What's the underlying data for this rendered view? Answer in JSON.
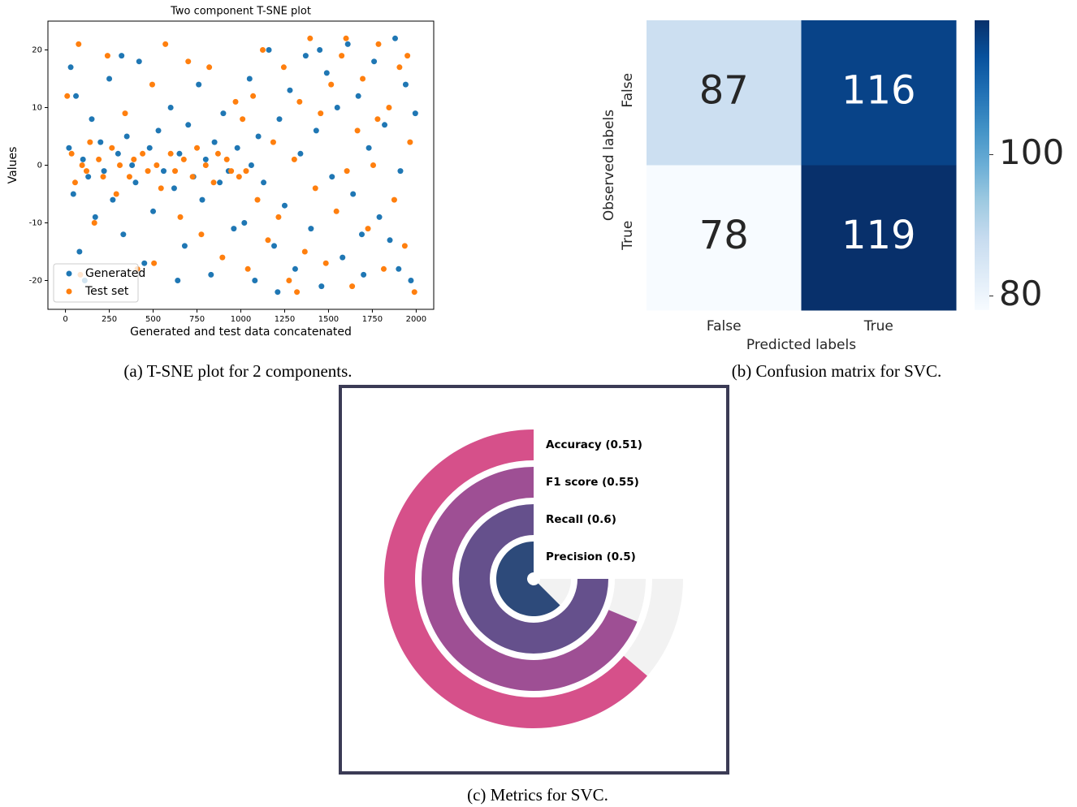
{
  "chart_data": [
    {
      "type": "scatter",
      "title": "Two component T-SNE plot",
      "xlabel": "Generated and test data concatenated",
      "ylabel": "Values",
      "caption": "(a) T-SNE plot for 2 components.",
      "xlim": [
        -100,
        2100
      ],
      "ylim": [
        -25,
        25
      ],
      "xticks": [
        0,
        250,
        500,
        750,
        1000,
        1250,
        1500,
        1750,
        2000
      ],
      "yticks": [
        -20,
        -10,
        0,
        10,
        20
      ],
      "legend": "lower left",
      "series": [
        {
          "name": "Generated",
          "color": "#1f77b4",
          "x": [
            20,
            45,
            60,
            80,
            100,
            130,
            150,
            170,
            200,
            220,
            250,
            270,
            300,
            330,
            350,
            380,
            400,
            420,
            450,
            480,
            500,
            530,
            560,
            600,
            620,
            650,
            680,
            700,
            730,
            760,
            780,
            800,
            830,
            850,
            880,
            900,
            930,
            960,
            980,
            30,
            110,
            320,
            640,
            1020,
            1050,
            1080,
            1100,
            1130,
            1160,
            1190,
            1220,
            1250,
            1280,
            1310,
            1340,
            1370,
            1400,
            1430,
            1460,
            1490,
            1520,
            1550,
            1580,
            1610,
            1640,
            1670,
            1700,
            1730,
            1760,
            1790,
            1820,
            1850,
            1880,
            1910,
            1940,
            1970,
            1995,
            1060,
            1210,
            1450,
            1690,
            1900
          ],
          "values": [
            3,
            -5,
            12,
            -15,
            1,
            -2,
            8,
            -9,
            4,
            -1,
            15,
            -6,
            2,
            -12,
            5,
            0,
            -3,
            18,
            -17,
            3,
            -8,
            6,
            -1,
            10,
            -4,
            2,
            -14,
            7,
            -2,
            14,
            -6,
            1,
            -19,
            4,
            -3,
            9,
            -1,
            -11,
            3,
            17,
            -20,
            19,
            -20,
            -10,
            15,
            -20,
            5,
            -3,
            20,
            -14,
            8,
            -7,
            13,
            -18,
            2,
            19,
            -11,
            6,
            -21,
            16,
            -2,
            10,
            -16,
            21,
            -5,
            12,
            -19,
            3,
            18,
            -9,
            7,
            -13,
            22,
            -1,
            14,
            -20,
            9,
            0,
            -22,
            20,
            -12,
            -18
          ]
        },
        {
          "name": "Test set",
          "color": "#ff7f0e",
          "x": [
            10,
            35,
            55,
            75,
            95,
            120,
            140,
            165,
            190,
            215,
            240,
            265,
            290,
            310,
            340,
            365,
            390,
            410,
            440,
            470,
            495,
            520,
            545,
            570,
            600,
            625,
            655,
            675,
            700,
            725,
            750,
            775,
            800,
            820,
            845,
            870,
            895,
            920,
            945,
            970,
            990,
            85,
            505,
            1010,
            1040,
            1070,
            1095,
            1125,
            1155,
            1185,
            1215,
            1245,
            1275,
            1305,
            1335,
            1365,
            1395,
            1425,
            1455,
            1485,
            1515,
            1545,
            1575,
            1605,
            1635,
            1665,
            1695,
            1725,
            1755,
            1785,
            1815,
            1845,
            1875,
            1905,
            1935,
            1965,
            1990,
            1030,
            1320,
            1600,
            1780,
            1950
          ],
          "values": [
            12,
            2,
            -3,
            21,
            0,
            -1,
            4,
            -10,
            1,
            -2,
            19,
            3,
            -5,
            0,
            9,
            -2,
            1,
            -18,
            2,
            -1,
            14,
            0,
            -4,
            21,
            2,
            -1,
            -9,
            1,
            18,
            -2,
            3,
            -12,
            0,
            17,
            -3,
            2,
            -16,
            1,
            -1,
            11,
            -2,
            -19,
            -17,
            8,
            -18,
            12,
            -6,
            20,
            -13,
            4,
            -9,
            17,
            -20,
            1,
            11,
            -15,
            22,
            -4,
            9,
            -17,
            14,
            -8,
            19,
            -1,
            -21,
            6,
            15,
            -11,
            0,
            21,
            -18,
            10,
            -6,
            17,
            -14,
            4,
            -22,
            -1,
            -22,
            22,
            8,
            19
          ]
        }
      ]
    },
    {
      "type": "heatmap",
      "caption": "(b) Confusion matrix for SVC.",
      "xlabel": "Predicted labels",
      "ylabel": "Observed labels",
      "x_categories": [
        "False",
        "True"
      ],
      "y_categories": [
        "False",
        "True"
      ],
      "z": [
        [
          87,
          116
        ],
        [
          78,
          119
        ]
      ],
      "zlim": [
        78,
        119
      ],
      "zticks": [
        80,
        100
      ],
      "colormap": [
        "#f7fbff",
        "#deebf7",
        "#c6dbef",
        "#9ecae1",
        "#6baed6",
        "#4292c6",
        "#2171b5",
        "#08519c",
        "#08306b"
      ]
    },
    {
      "type": "radial_bar",
      "caption": "(c) Metrics for SVC.",
      "thetalim": [
        0,
        0.6
      ],
      "values": [
        0.51,
        0.55,
        0.6,
        0.5
      ],
      "value_labels": [
        "Accuracy (0.51)",
        "F1 score (0.55)",
        "Recall (0.6)",
        "Precision (0.5)"
      ],
      "colors": [
        "#d6508a",
        "#9e4f94",
        "#65508c",
        "#2d4a7a"
      ],
      "track_color": "#f2f2f2"
    }
  ]
}
